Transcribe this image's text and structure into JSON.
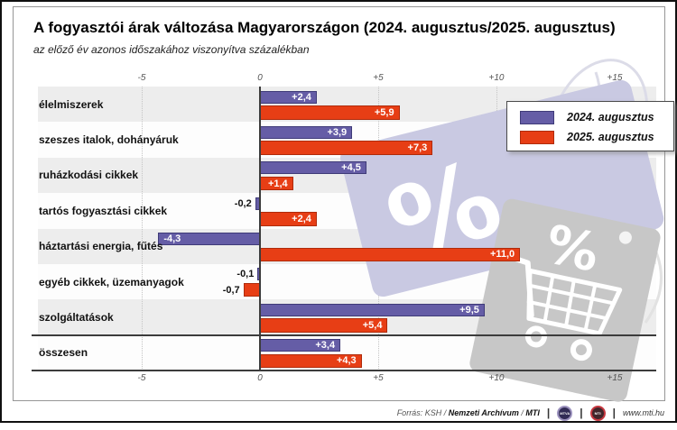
{
  "header": {
    "title": "A fogyasztói árak változása Magyarországon (2024. augusztus/2025. augusztus)",
    "subtitle": "az előző év azonos időszakához viszonyítva százalékban"
  },
  "legend": {
    "items": [
      {
        "label": "2024. augusztus",
        "color": "#655DA6"
      },
      {
        "label": "2025. augusztus",
        "color": "#E73E15"
      }
    ]
  },
  "chart_data": {
    "type": "bar",
    "orientation": "horizontal",
    "title": "A fogyasztói árak változása Magyarországon (2024. augusztus/2025. augusztus)",
    "subtitle": "az előző év azonos időszakához viszonyítva százalékban",
    "unit": "percent",
    "categories": [
      "élelmiszerek",
      "szeszes italok, dohányáruk",
      "ruházkodási cikkek",
      "tartós fogyasztási cikkek",
      "háztartási energia, fűtés",
      "egyéb cikkek, üzemanyagok",
      "szolgáltatások",
      "összesen"
    ],
    "series": [
      {
        "name": "2024. augusztus",
        "color": "#655DA6",
        "border": "#3F3B78",
        "values": [
          2.4,
          3.9,
          4.5,
          -0.2,
          -4.3,
          -0.1,
          9.5,
          3.4
        ],
        "labels": [
          "+2,4",
          "+3,9",
          "+4,5",
          "-0,2",
          "-4,3",
          "-0,1",
          "+9,5",
          "+3,4"
        ]
      },
      {
        "name": "2025. augusztus",
        "color": "#E73E15",
        "border": "#AF2B0B",
        "values": [
          5.9,
          7.3,
          1.4,
          2.4,
          11.0,
          -0.7,
          5.4,
          4.3
        ],
        "labels": [
          "+5,9",
          "+7,3",
          "+1,4",
          "+2,4",
          "+11,0",
          "-0,7",
          "+5,4",
          "+4,3"
        ]
      }
    ],
    "x_ticks": {
      "values": [
        -5,
        0,
        5,
        10,
        15
      ],
      "labels": [
        "-5",
        "0",
        "+5",
        "+10",
        "+15"
      ]
    },
    "xlim": [
      -9.4,
      16.8
    ],
    "grid": "dotted-vertical",
    "legend_position": "top-right",
    "total_row_separator": true,
    "watermarks": [
      "price-tag-percent-lavender",
      "price-tag-percent-gray",
      "shopping-cart"
    ]
  },
  "footer": {
    "source_prefix": "Forrás: KSH / ",
    "source_bold_1": "Nemzeti Archívum",
    "source_mid": " / ",
    "source_bold_2": "MTI",
    "separator": "|",
    "logos": [
      {
        "name": "mtva-logo",
        "text": "MTVA"
      },
      {
        "name": "mti-logo",
        "text": "MTI"
      }
    ],
    "website": "www.mti.hu"
  },
  "colors": {
    "stripe_gray": "#EDEDED",
    "axis_line": "#3C3C3C",
    "gridline": "#C4C4C4",
    "panel_border": "#969696",
    "tag_lavender": "#C9C9E2",
    "tag_gray": "#C7C7C7",
    "string_gray": "#DCDCE8"
  }
}
